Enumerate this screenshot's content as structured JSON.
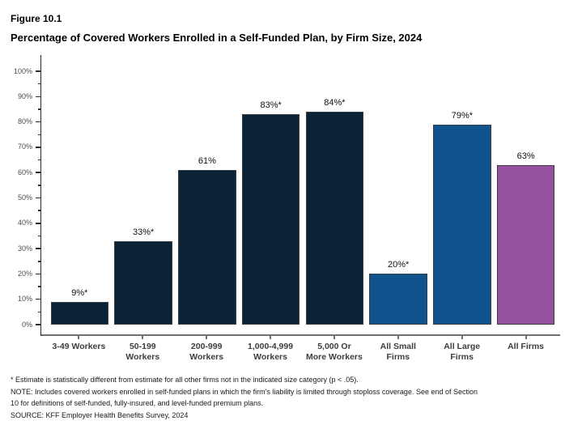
{
  "header": {
    "figure_label": "Figure 10.1",
    "title": "Percentage of Covered Workers Enrolled in a Self-Funded Plan, by Firm Size, 2024"
  },
  "chart_data": {
    "type": "bar",
    "title": "Percentage of Covered Workers Enrolled in a Self-Funded Plan, by Firm Size, 2024",
    "figure_label": "Figure 10.1",
    "categories": [
      "3-49 Workers",
      "50-199 Workers",
      "200-999 Workers",
      "1,000-4,999 Workers",
      "5,000 Or More Workers",
      "All Small Firms",
      "All Large Firms",
      "All Firms"
    ],
    "category_display": [
      "3-49 Workers",
      "50-199\nWorkers",
      "200-999\nWorkers",
      "1,000-4,999\nWorkers",
      "5,000 Or\nMore Workers",
      "All Small\nFirms",
      "All Large\nFirms",
      "All Firms"
    ],
    "values": [
      9,
      33,
      61,
      83,
      84,
      20,
      79,
      63
    ],
    "bar_labels": [
      "9%*",
      "33%*",
      "61%",
      "83%*",
      "84%*",
      "20%*",
      "79%*",
      "63%"
    ],
    "bar_colors": [
      "#0a2336",
      "#0a2336",
      "#0a2336",
      "#0a2336",
      "#0a2336",
      "#10528c",
      "#10528c",
      "#95519f"
    ],
    "colors": {
      "dark_navy": "#0a2336",
      "blue": "#10528c",
      "purple": "#95519f"
    },
    "xlabel": "",
    "ylabel": "",
    "ylim": [
      0,
      100
    ],
    "y_major_ticks": [
      0,
      10,
      20,
      30,
      40,
      50,
      60,
      70,
      80,
      90,
      100
    ],
    "y_tick_labels": [
      "0%",
      "10%",
      "20%",
      "30%",
      "40%",
      "50%",
      "60%",
      "70%",
      "80%",
      "90%",
      "100%"
    ],
    "y_minor_ticks": [
      5,
      15,
      25,
      35,
      45,
      55,
      65,
      75,
      85,
      95
    ],
    "grid": false,
    "legend": false
  },
  "footnotes": {
    "asterisk": "* Estimate is statistically different from estimate for all other firms not in the indicated size category (p < .05).",
    "note_lines": [
      "NOTE: Includes covered workers enrolled in self-funded plans in which the firm's liability is limited through stoploss coverage. See end of Section",
      "10 for definitions of self-funded, fully-insured, and level-funded premium plans."
    ],
    "source": "SOURCE: KFF Employer Health Benefits Survey, 2024"
  }
}
